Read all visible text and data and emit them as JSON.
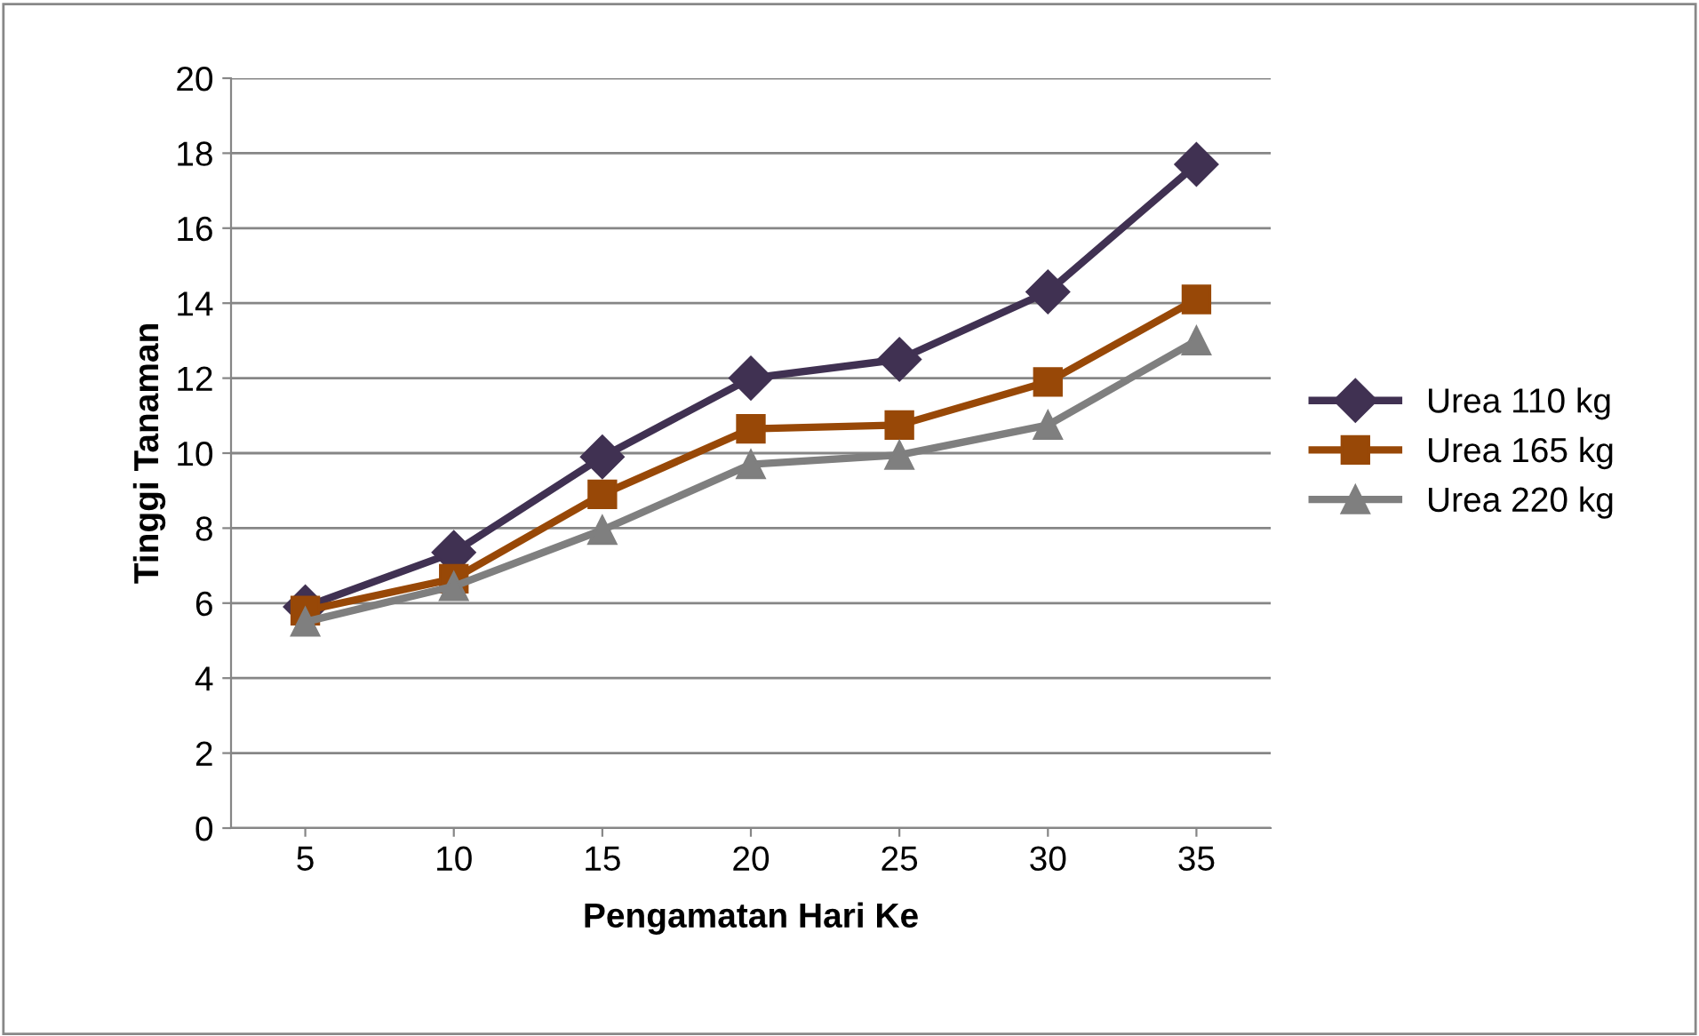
{
  "chart_data": {
    "type": "line",
    "xlabel": "Pengamatan Hari Ke",
    "ylabel": "Tinggi Tanaman",
    "categories": [
      "5",
      "10",
      "15",
      "20",
      "25",
      "30",
      "35"
    ],
    "series": [
      {
        "name": "Urea 110 kg",
        "color": "#403152",
        "marker": "diamond",
        "values": [
          5.9,
          7.35,
          9.9,
          12.0,
          12.5,
          14.3,
          17.7
        ]
      },
      {
        "name": "Urea 165 kg",
        "color": "#984807",
        "marker": "square",
        "values": [
          5.8,
          6.65,
          8.9,
          10.65,
          10.75,
          11.9,
          14.1
        ]
      },
      {
        "name": "Urea 220 kg",
        "color": "#7f7f7f",
        "marker": "triangle",
        "values": [
          5.5,
          6.45,
          7.95,
          9.7,
          9.95,
          10.75,
          13.0
        ]
      }
    ],
    "ylim": [
      0,
      20
    ],
    "yticks": [
      0,
      2,
      4,
      6,
      8,
      10,
      12,
      14,
      16,
      18,
      20
    ],
    "grid": "y",
    "legend": "right",
    "line_style": "solid"
  }
}
